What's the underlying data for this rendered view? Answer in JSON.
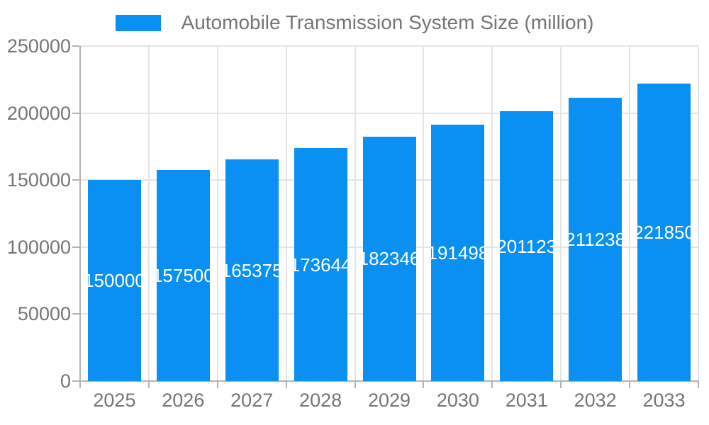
{
  "legend": {
    "label": "Automobile Transmission System Size (million)"
  },
  "colors": {
    "bar": "#0A8FF3",
    "bar_value_text": "#FFFFFF",
    "axis_text": "#757575",
    "legend_text": "#757575",
    "grid_line": "#E4E4E4",
    "axis_line": "#B3B3B3",
    "background": "#FFFFFF"
  },
  "chart_data": {
    "type": "bar",
    "title": "Automobile Transmission System Size (million)",
    "categories": [
      "2025",
      "2026",
      "2027",
      "2028",
      "2029",
      "2030",
      "2031",
      "2032",
      "2033"
    ],
    "values": [
      150000,
      157500,
      165375,
      173644,
      182346,
      191498,
      201123,
      211238,
      221850
    ],
    "bar_labels": [
      "150000",
      "157500",
      "165375",
      "173644",
      "182346",
      "191498",
      "201123",
      "211238",
      "221850"
    ],
    "series": [
      {
        "name": "Automobile Transmission System Size (million)",
        "values": [
          150000,
          157500,
          165375,
          173644,
          182346,
          191498,
          201123,
          211238,
          221850
        ]
      }
    ],
    "xlabel": "",
    "ylabel": "",
    "ylim": [
      0,
      250000
    ],
    "yticks": [
      0,
      50000,
      100000,
      150000,
      200000,
      250000
    ],
    "ytick_labels": [
      "0",
      "50000",
      "100000",
      "150000",
      "200000",
      "250000"
    ],
    "grid": true,
    "legend_position": "top",
    "value_labels": "inside-center-white"
  }
}
